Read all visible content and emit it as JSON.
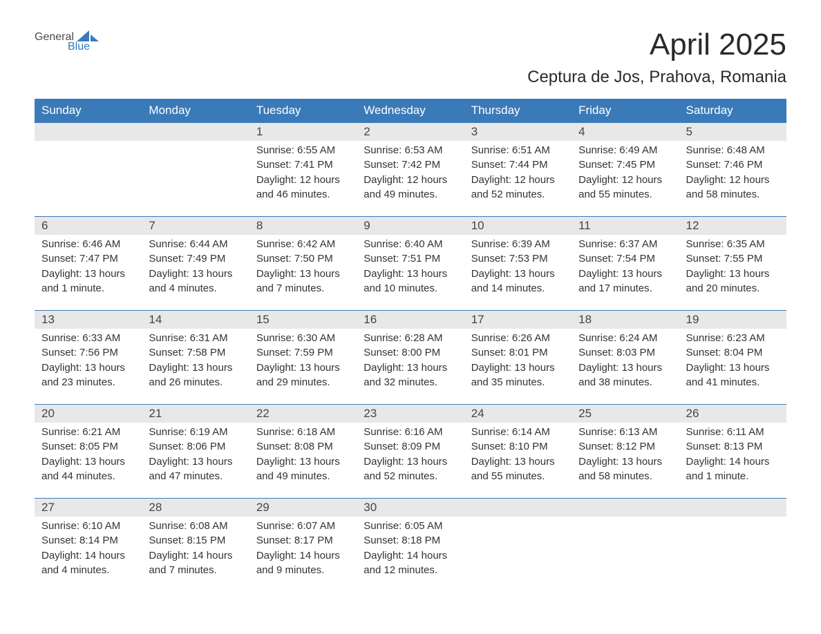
{
  "logo": {
    "text_general": "General",
    "text_blue": "Blue",
    "icon_color": "#3a7ab8"
  },
  "header": {
    "month_title": "April 2025",
    "location": "Ceptura de Jos, Prahova, Romania"
  },
  "colors": {
    "header_bg": "#3a7ab8",
    "header_text": "#ffffff",
    "day_number_bg": "#e8e8e8",
    "body_text": "#333333",
    "title_text": "#2a2a2a",
    "row_border": "#3a7ab8"
  },
  "day_headers": [
    "Sunday",
    "Monday",
    "Tuesday",
    "Wednesday",
    "Thursday",
    "Friday",
    "Saturday"
  ],
  "weeks": [
    [
      {
        "empty": true
      },
      {
        "empty": true
      },
      {
        "day": "1",
        "sunrise": "Sunrise: 6:55 AM",
        "sunset": "Sunset: 7:41 PM",
        "daylight1": "Daylight: 12 hours",
        "daylight2": "and 46 minutes."
      },
      {
        "day": "2",
        "sunrise": "Sunrise: 6:53 AM",
        "sunset": "Sunset: 7:42 PM",
        "daylight1": "Daylight: 12 hours",
        "daylight2": "and 49 minutes."
      },
      {
        "day": "3",
        "sunrise": "Sunrise: 6:51 AM",
        "sunset": "Sunset: 7:44 PM",
        "daylight1": "Daylight: 12 hours",
        "daylight2": "and 52 minutes."
      },
      {
        "day": "4",
        "sunrise": "Sunrise: 6:49 AM",
        "sunset": "Sunset: 7:45 PM",
        "daylight1": "Daylight: 12 hours",
        "daylight2": "and 55 minutes."
      },
      {
        "day": "5",
        "sunrise": "Sunrise: 6:48 AM",
        "sunset": "Sunset: 7:46 PM",
        "daylight1": "Daylight: 12 hours",
        "daylight2": "and 58 minutes."
      }
    ],
    [
      {
        "day": "6",
        "sunrise": "Sunrise: 6:46 AM",
        "sunset": "Sunset: 7:47 PM",
        "daylight1": "Daylight: 13 hours",
        "daylight2": "and 1 minute."
      },
      {
        "day": "7",
        "sunrise": "Sunrise: 6:44 AM",
        "sunset": "Sunset: 7:49 PM",
        "daylight1": "Daylight: 13 hours",
        "daylight2": "and 4 minutes."
      },
      {
        "day": "8",
        "sunrise": "Sunrise: 6:42 AM",
        "sunset": "Sunset: 7:50 PM",
        "daylight1": "Daylight: 13 hours",
        "daylight2": "and 7 minutes."
      },
      {
        "day": "9",
        "sunrise": "Sunrise: 6:40 AM",
        "sunset": "Sunset: 7:51 PM",
        "daylight1": "Daylight: 13 hours",
        "daylight2": "and 10 minutes."
      },
      {
        "day": "10",
        "sunrise": "Sunrise: 6:39 AM",
        "sunset": "Sunset: 7:53 PM",
        "daylight1": "Daylight: 13 hours",
        "daylight2": "and 14 minutes."
      },
      {
        "day": "11",
        "sunrise": "Sunrise: 6:37 AM",
        "sunset": "Sunset: 7:54 PM",
        "daylight1": "Daylight: 13 hours",
        "daylight2": "and 17 minutes."
      },
      {
        "day": "12",
        "sunrise": "Sunrise: 6:35 AM",
        "sunset": "Sunset: 7:55 PM",
        "daylight1": "Daylight: 13 hours",
        "daylight2": "and 20 minutes."
      }
    ],
    [
      {
        "day": "13",
        "sunrise": "Sunrise: 6:33 AM",
        "sunset": "Sunset: 7:56 PM",
        "daylight1": "Daylight: 13 hours",
        "daylight2": "and 23 minutes."
      },
      {
        "day": "14",
        "sunrise": "Sunrise: 6:31 AM",
        "sunset": "Sunset: 7:58 PM",
        "daylight1": "Daylight: 13 hours",
        "daylight2": "and 26 minutes."
      },
      {
        "day": "15",
        "sunrise": "Sunrise: 6:30 AM",
        "sunset": "Sunset: 7:59 PM",
        "daylight1": "Daylight: 13 hours",
        "daylight2": "and 29 minutes."
      },
      {
        "day": "16",
        "sunrise": "Sunrise: 6:28 AM",
        "sunset": "Sunset: 8:00 PM",
        "daylight1": "Daylight: 13 hours",
        "daylight2": "and 32 minutes."
      },
      {
        "day": "17",
        "sunrise": "Sunrise: 6:26 AM",
        "sunset": "Sunset: 8:01 PM",
        "daylight1": "Daylight: 13 hours",
        "daylight2": "and 35 minutes."
      },
      {
        "day": "18",
        "sunrise": "Sunrise: 6:24 AM",
        "sunset": "Sunset: 8:03 PM",
        "daylight1": "Daylight: 13 hours",
        "daylight2": "and 38 minutes."
      },
      {
        "day": "19",
        "sunrise": "Sunrise: 6:23 AM",
        "sunset": "Sunset: 8:04 PM",
        "daylight1": "Daylight: 13 hours",
        "daylight2": "and 41 minutes."
      }
    ],
    [
      {
        "day": "20",
        "sunrise": "Sunrise: 6:21 AM",
        "sunset": "Sunset: 8:05 PM",
        "daylight1": "Daylight: 13 hours",
        "daylight2": "and 44 minutes."
      },
      {
        "day": "21",
        "sunrise": "Sunrise: 6:19 AM",
        "sunset": "Sunset: 8:06 PM",
        "daylight1": "Daylight: 13 hours",
        "daylight2": "and 47 minutes."
      },
      {
        "day": "22",
        "sunrise": "Sunrise: 6:18 AM",
        "sunset": "Sunset: 8:08 PM",
        "daylight1": "Daylight: 13 hours",
        "daylight2": "and 49 minutes."
      },
      {
        "day": "23",
        "sunrise": "Sunrise: 6:16 AM",
        "sunset": "Sunset: 8:09 PM",
        "daylight1": "Daylight: 13 hours",
        "daylight2": "and 52 minutes."
      },
      {
        "day": "24",
        "sunrise": "Sunrise: 6:14 AM",
        "sunset": "Sunset: 8:10 PM",
        "daylight1": "Daylight: 13 hours",
        "daylight2": "and 55 minutes."
      },
      {
        "day": "25",
        "sunrise": "Sunrise: 6:13 AM",
        "sunset": "Sunset: 8:12 PM",
        "daylight1": "Daylight: 13 hours",
        "daylight2": "and 58 minutes."
      },
      {
        "day": "26",
        "sunrise": "Sunrise: 6:11 AM",
        "sunset": "Sunset: 8:13 PM",
        "daylight1": "Daylight: 14 hours",
        "daylight2": "and 1 minute."
      }
    ],
    [
      {
        "day": "27",
        "sunrise": "Sunrise: 6:10 AM",
        "sunset": "Sunset: 8:14 PM",
        "daylight1": "Daylight: 14 hours",
        "daylight2": "and 4 minutes."
      },
      {
        "day": "28",
        "sunrise": "Sunrise: 6:08 AM",
        "sunset": "Sunset: 8:15 PM",
        "daylight1": "Daylight: 14 hours",
        "daylight2": "and 7 minutes."
      },
      {
        "day": "29",
        "sunrise": "Sunrise: 6:07 AM",
        "sunset": "Sunset: 8:17 PM",
        "daylight1": "Daylight: 14 hours",
        "daylight2": "and 9 minutes."
      },
      {
        "day": "30",
        "sunrise": "Sunrise: 6:05 AM",
        "sunset": "Sunset: 8:18 PM",
        "daylight1": "Daylight: 14 hours",
        "daylight2": "and 12 minutes."
      },
      {
        "empty": true
      },
      {
        "empty": true
      },
      {
        "empty": true
      }
    ]
  ]
}
